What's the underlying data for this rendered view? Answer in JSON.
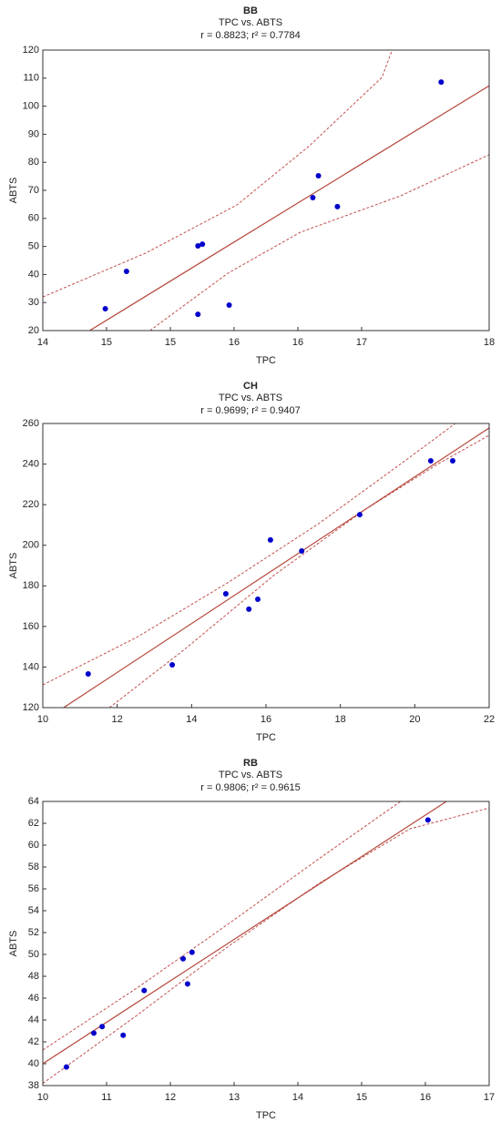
{
  "chart_data": [
    {
      "type": "scatter",
      "title": "BB",
      "subtitle": "TPC  vs. ABTS",
      "annotation": "r = 0.8823; r² = 0.7784",
      "xlabel": "TPC",
      "ylabel": "ABTS",
      "xlim": [
        14,
        18
      ],
      "xticks": [
        14,
        {
          "value": 14.571,
          "label": "15"
        },
        {
          "value": 15.143,
          "label": "15"
        },
        {
          "value": 15.714,
          "label": "16"
        },
        {
          "value": 16.286,
          "label": "16"
        },
        {
          "value": 16.857,
          "label": "17"
        },
        18
      ],
      "ylim": [
        20,
        120
      ],
      "yticks": [
        20,
        30,
        40,
        50,
        60,
        70,
        80,
        90,
        100,
        110,
        120
      ],
      "points": {
        "color": "#0000cc",
        "x": [
          14.56,
          14.75,
          15.39,
          15.43,
          15.39,
          15.67,
          16.42,
          16.47,
          16.64,
          17.57
        ],
        "y": [
          27.8,
          41.1,
          50.2,
          50.8,
          25.8,
          29.1,
          67.4,
          75.2,
          64.2,
          108.6
        ]
      },
      "fit": {
        "color": "#b5473a",
        "x": [
          14.42,
          18
        ],
        "y": [
          20,
          107.3
        ]
      },
      "bands": [
        {
          "color": "#c0504d",
          "x": [
            14,
            14.92,
            15.74,
            16.39,
            17.04,
            17.13
          ],
          "y": [
            32,
            47.6,
            64.8,
            85.9,
            110.3,
            120
          ]
        },
        {
          "color": "#c0504d",
          "x": [
            14.96,
            15.66,
            16.31,
            17.21,
            18
          ],
          "y": [
            20,
            40.5,
            55.1,
            68.1,
            82.7
          ]
        }
      ]
    },
    {
      "type": "scatter",
      "title": "CH",
      "subtitle": "TPC vs. ABTS",
      "annotation": "r = 0.9699; r² = 0.9407",
      "xlabel": "TPC",
      "ylabel": "ABTS",
      "xlim": [
        10,
        22
      ],
      "xticks": [
        10,
        12,
        14,
        16,
        18,
        20,
        22
      ],
      "ylim": [
        120,
        260
      ],
      "yticks": [
        120,
        140,
        160,
        180,
        200,
        220,
        240,
        260
      ],
      "points": {
        "color": "#0000cc",
        "x": [
          11.22,
          13.48,
          14.92,
          15.54,
          15.78,
          16.12,
          16.96,
          18.52,
          20.43,
          21.02
        ],
        "y": [
          136.6,
          141.1,
          176.1,
          168.5,
          173.4,
          202.6,
          197.2,
          215.1,
          241.6,
          241.6
        ]
      },
      "fit": {
        "color": "#b5473a",
        "x": [
          10.56,
          22
        ],
        "y": [
          120,
          257.8
        ]
      },
      "bands": [
        {
          "color": "#c0504d",
          "x": [
            10,
            12.52,
            14.97,
            17.42,
            19.87,
            21.09
          ],
          "y": [
            131.2,
            154.6,
            181.5,
            210.7,
            243.4,
            260
          ]
        },
        {
          "color": "#c0504d",
          "x": [
            11.79,
            13.75,
            16.2,
            18.65,
            20.6,
            22
          ],
          "y": [
            120,
            147.8,
            185,
            217.4,
            239.8,
            254.2
          ]
        }
      ]
    },
    {
      "type": "scatter",
      "title": "RB",
      "subtitle": "TPC vs. ABTS",
      "annotation": "r = 0.9806; r² = 0.9615",
      "xlabel": "TPC",
      "ylabel": "ABTS",
      "xlim": [
        10,
        17
      ],
      "xticks": [
        10,
        11,
        12,
        13,
        14,
        15,
        16,
        17
      ],
      "ylim": [
        38,
        64
      ],
      "yticks": [
        38,
        40,
        42,
        44,
        46,
        48,
        50,
        52,
        54,
        56,
        58,
        60,
        62,
        64
      ],
      "points": {
        "color": "#0000cc",
        "x": [
          10.37,
          10.8,
          10.93,
          11.26,
          11.59,
          12.2,
          12.34,
          12.27,
          16.04
        ],
        "y": [
          39.7,
          42.8,
          43.4,
          42.6,
          46.7,
          49.6,
          50.2,
          47.3,
          62.3
        ]
      },
      "fit": {
        "color": "#b5473a",
        "x": [
          10,
          16.33
        ],
        "y": [
          40,
          64
        ]
      },
      "bands": [
        {
          "color": "#c0504d",
          "x": [
            10,
            11.47,
            12.9,
            14.33,
            15.61
          ],
          "y": [
            41.25,
            46.9,
            52.75,
            58.75,
            64
          ]
        },
        {
          "color": "#c0504d",
          "x": [
            10,
            11.47,
            12.9,
            14.33,
            15.76,
            17
          ],
          "y": [
            38.2,
            44.4,
            50.7,
            56.5,
            61.5,
            63.4
          ]
        }
      ]
    }
  ]
}
